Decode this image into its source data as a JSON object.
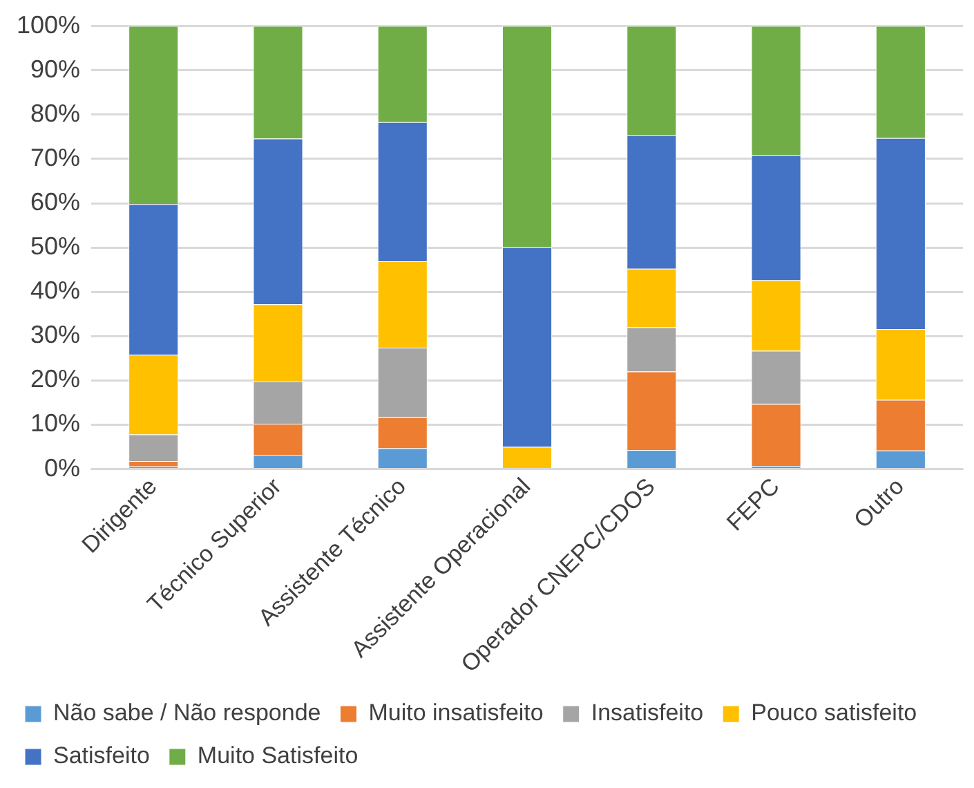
{
  "chart_data": {
    "type": "bar",
    "stacked": true,
    "categories": [
      "Dirigente",
      "Técnico Superior",
      "Assistente Técnico",
      "Assistente Operacional",
      "Operador CNEPC/CDOS",
      "FEPC",
      "Outro"
    ],
    "series": [
      {
        "name": "Não sabe / Não responde",
        "color": "#5b9bd5",
        "values": [
          0.6,
          3.2,
          4.7,
          0,
          4.3,
          0.7,
          4.2
        ]
      },
      {
        "name": "Muito insatisfeito",
        "color": "#ed7d31",
        "values": [
          1.2,
          7,
          7,
          0,
          17.7,
          14,
          11.4
        ]
      },
      {
        "name": "Insatisfeito",
        "color": "#a5a5a5",
        "values": [
          6,
          9.6,
          15.7,
          0,
          10,
          12,
          0
        ]
      },
      {
        "name": "Pouco satisfeito",
        "color": "#ffc000",
        "values": [
          18,
          17.4,
          19.5,
          5,
          13.2,
          15.9,
          16
        ]
      },
      {
        "name": "Satisfeito",
        "color": "#4472c4",
        "values": [
          34,
          37.4,
          31.4,
          45,
          30.1,
          28.3,
          43.1
        ]
      },
      {
        "name": "Muito Satisfeito",
        "color": "#70ad47",
        "values": [
          40.2,
          25.4,
          21.7,
          50,
          24.7,
          29.1,
          25.3
        ]
      }
    ],
    "ylim": [
      0,
      100
    ],
    "yticks": [
      {
        "value": 0,
        "label": "0%"
      },
      {
        "value": 10,
        "label": "10%"
      },
      {
        "value": 20,
        "label": "20%"
      },
      {
        "value": 30,
        "label": "30%"
      },
      {
        "value": 40,
        "label": "40%"
      },
      {
        "value": 50,
        "label": "50%"
      },
      {
        "value": 60,
        "label": "60%"
      },
      {
        "value": 70,
        "label": "70%"
      },
      {
        "value": 80,
        "label": "80%"
      },
      {
        "value": 90,
        "label": "90%"
      },
      {
        "value": 100,
        "label": "100%"
      }
    ],
    "grid": "y",
    "legend": "bottom"
  }
}
